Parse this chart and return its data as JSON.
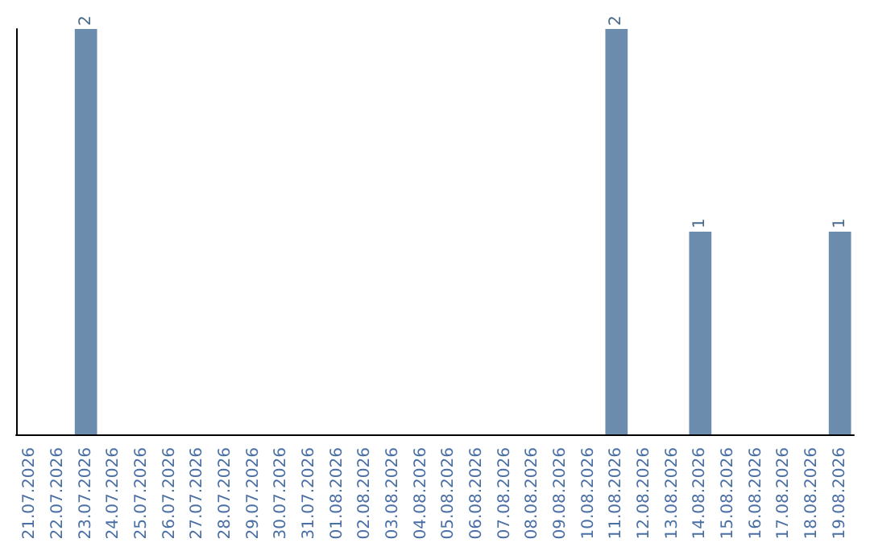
{
  "chart_data": {
    "type": "bar",
    "categories": [
      "21.07.2026",
      "22.07.2026",
      "23.07.2026",
      "24.07.2026",
      "25.07.2026",
      "26.07.2026",
      "27.07.2026",
      "28.07.2026",
      "29.07.2026",
      "30.07.2026",
      "31.07.2026",
      "01.08.2026",
      "02.08.2026",
      "03.08.2026",
      "04.08.2026",
      "05.08.2026",
      "06.08.2026",
      "07.08.2026",
      "08.08.2026",
      "09.08.2026",
      "10.08.2026",
      "11.08.2026",
      "12.08.2026",
      "13.08.2026",
      "14.08.2026",
      "15.08.2026",
      "16.08.2026",
      "17.08.2026",
      "18.08.2026",
      "19.08.2026"
    ],
    "values": [
      0,
      0,
      2,
      0,
      0,
      0,
      0,
      0,
      0,
      0,
      0,
      0,
      0,
      0,
      0,
      0,
      0,
      0,
      0,
      0,
      0,
      2,
      0,
      0,
      1,
      0,
      0,
      0,
      0,
      1
    ],
    "value_labels": [
      null,
      null,
      "2",
      null,
      null,
      null,
      null,
      null,
      null,
      null,
      null,
      null,
      null,
      null,
      null,
      null,
      null,
      null,
      null,
      null,
      null,
      "2",
      null,
      null,
      "1",
      null,
      null,
      null,
      null,
      "1"
    ],
    "color": "#6b8cad",
    "tick_labels": "x"
  }
}
